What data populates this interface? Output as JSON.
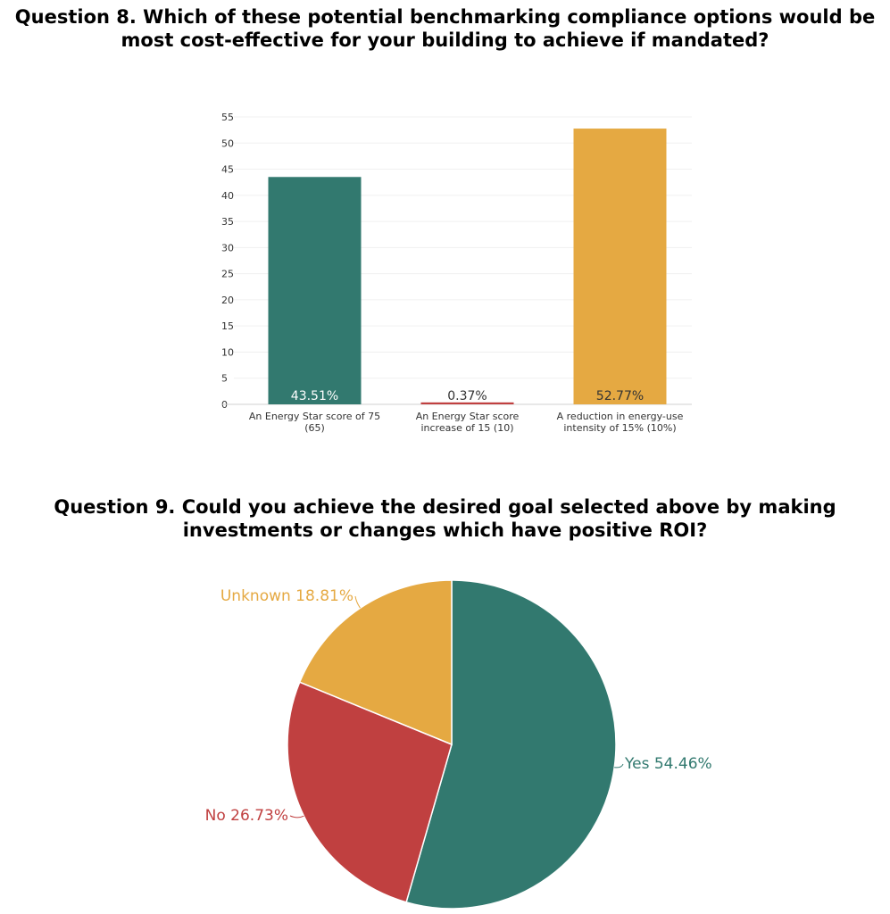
{
  "q8": {
    "title_line1": "Question 8. Which of these potential benchmarking compliance options would be",
    "title_line2": "most cost-effective for your building to achieve if mandated?"
  },
  "q9": {
    "title_line1": "Question 9. Could you achieve the desired goal selected above by making",
    "title_line2": "investments or changes which have positive ROI?"
  },
  "chart_data": [
    {
      "type": "bar",
      "title": "Question 8. Which of these potential benchmarking compliance options would be most cost-effective for your building to achieve if mandated?",
      "categories": [
        [
          "An Energy Star score of 75",
          "(65)"
        ],
        [
          "An Energy Star score",
          "increase of 15 (10)"
        ],
        [
          "A reduction in energy-use",
          "intensity of 15% (10%)"
        ]
      ],
      "values": [
        43.51,
        0.37,
        52.77
      ],
      "value_labels": [
        "43.51%",
        "0.37%",
        "52.77%"
      ],
      "colors": [
        "#32796f",
        "#c04040",
        "#e5a942"
      ],
      "value_label_colors": [
        "#ffffff",
        "#333333",
        "#333333"
      ],
      "ylim": [
        0,
        55
      ],
      "yticks": [
        0,
        5,
        10,
        15,
        20,
        25,
        30,
        35,
        40,
        45,
        50,
        55
      ],
      "grid": true,
      "xlabel": "",
      "ylabel": ""
    },
    {
      "type": "pie",
      "title": "Question 9. Could you achieve the desired goal selected above by making investments or changes which have positive ROI?",
      "slices": [
        {
          "label": "Yes",
          "value": 54.46,
          "display": "Yes 54.46%",
          "color": "#32796f"
        },
        {
          "label": "No",
          "value": 26.73,
          "display": "No  26.73%",
          "color": "#c04040"
        },
        {
          "label": "Unknown",
          "value": 18.81,
          "display": "Unknown 18.81%",
          "color": "#e5a942"
        }
      ]
    }
  ]
}
